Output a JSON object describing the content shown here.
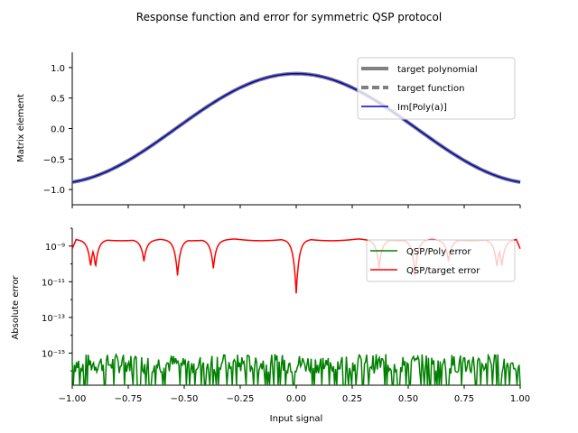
{
  "chart_data": {
    "type": "line",
    "title": "Response function and error for symmetric QSP protocol",
    "panels": [
      {
        "ylabel": "Matrix element",
        "xlim": [
          -1.0,
          1.0
        ],
        "ylim": [
          -1.25,
          1.25
        ],
        "y_scale": "linear",
        "yticks": [
          -1.0,
          -0.5,
          0.0,
          0.5,
          1.0
        ],
        "ytick_labels": [
          "−1.0",
          "−0.5",
          "0.0",
          "0.5",
          "1.0"
        ],
        "legend_position": "upper right",
        "series": [
          {
            "name": "target polynomial",
            "color": "#808080",
            "style": "solid-thick",
            "x": [
              -1.0,
              -0.9,
              -0.8,
              -0.7,
              -0.6,
              -0.5,
              -0.4,
              -0.3,
              -0.2,
              -0.1,
              0.0,
              0.1,
              0.2,
              0.3,
              0.4,
              0.5,
              0.6,
              0.7,
              0.8,
              0.9,
              1.0
            ],
            "y": [
              -0.9,
              -0.85,
              -0.72,
              -0.52,
              -0.28,
              -0.02,
              0.24,
              0.49,
              0.69,
              0.84,
              0.9,
              0.84,
              0.69,
              0.49,
              0.24,
              -0.02,
              -0.28,
              -0.52,
              -0.72,
              -0.85,
              -0.9
            ]
          },
          {
            "name": "target function",
            "color": "#808080",
            "style": "dashed-thick",
            "x": [
              -1.0,
              -0.9,
              -0.8,
              -0.7,
              -0.6,
              -0.5,
              -0.4,
              -0.3,
              -0.2,
              -0.1,
              0.0,
              0.1,
              0.2,
              0.3,
              0.4,
              0.5,
              0.6,
              0.7,
              0.8,
              0.9,
              1.0
            ],
            "y": [
              -0.9,
              -0.85,
              -0.72,
              -0.52,
              -0.28,
              -0.02,
              0.24,
              0.49,
              0.69,
              0.84,
              0.9,
              0.84,
              0.69,
              0.49,
              0.24,
              -0.02,
              -0.28,
              -0.52,
              -0.72,
              -0.85,
              -0.9
            ]
          },
          {
            "name": "Im[Poly(a)]",
            "color": "#0000cc",
            "style": "solid",
            "x": [
              -1.0,
              -0.9,
              -0.8,
              -0.7,
              -0.6,
              -0.5,
              -0.4,
              -0.3,
              -0.2,
              -0.1,
              0.0,
              0.1,
              0.2,
              0.3,
              0.4,
              0.5,
              0.6,
              0.7,
              0.8,
              0.9,
              1.0
            ],
            "y": [
              -0.9,
              -0.85,
              -0.72,
              -0.52,
              -0.28,
              -0.02,
              0.24,
              0.49,
              0.69,
              0.84,
              0.9,
              0.84,
              0.69,
              0.49,
              0.24,
              -0.02,
              -0.28,
              -0.52,
              -0.72,
              -0.85,
              -0.9
            ]
          }
        ]
      },
      {
        "ylabel": "Absolute error",
        "xlabel": "Input signal",
        "xlim": [
          -1.0,
          1.0
        ],
        "xticks": [
          -1.0,
          -0.75,
          -0.5,
          -0.25,
          0.0,
          0.25,
          0.5,
          0.75,
          1.0
        ],
        "xtick_labels": [
          "−1.00",
          "−0.75",
          "−0.50",
          "−0.25",
          "0.00",
          "0.25",
          "0.50",
          "0.75",
          "1.00"
        ],
        "y_scale": "log",
        "ylim_log10": [
          -16.8,
          -8.0
        ],
        "yticks_log10": [
          -15,
          -13,
          -11,
          -9
        ],
        "ytick_labels": [
          "10⁻¹⁵",
          "10⁻¹³",
          "10⁻¹¹",
          "10⁻⁹"
        ],
        "legend_position": "upper right",
        "series": [
          {
            "name": "QSP/Poly error",
            "color": "#008000",
            "style": "noise",
            "log10_baseline": -15.6,
            "log10_min": -16.8,
            "log10_max": -14.9
          },
          {
            "name": "QSP/target error",
            "color": "#ff0000",
            "style": "solid",
            "log10_peak": -8.55,
            "dips": [
              {
                "x": -0.918,
                "log10": -9.9
              },
              {
                "x": -0.896,
                "log10": -9.95
              },
              {
                "x": -0.68,
                "log10": -9.6
              },
              {
                "x": -0.53,
                "log10": -10.4
              },
              {
                "x": -0.37,
                "log10": -10.0
              },
              {
                "x": 0.0,
                "log10": -11.4
              },
              {
                "x": 0.37,
                "log10": -10.0
              },
              {
                "x": 0.53,
                "log10": -10.4
              },
              {
                "x": 0.68,
                "log10": -9.6
              },
              {
                "x": 0.896,
                "log10": -9.95
              },
              {
                "x": 0.918,
                "log10": -9.9
              }
            ]
          }
        ]
      }
    ]
  }
}
